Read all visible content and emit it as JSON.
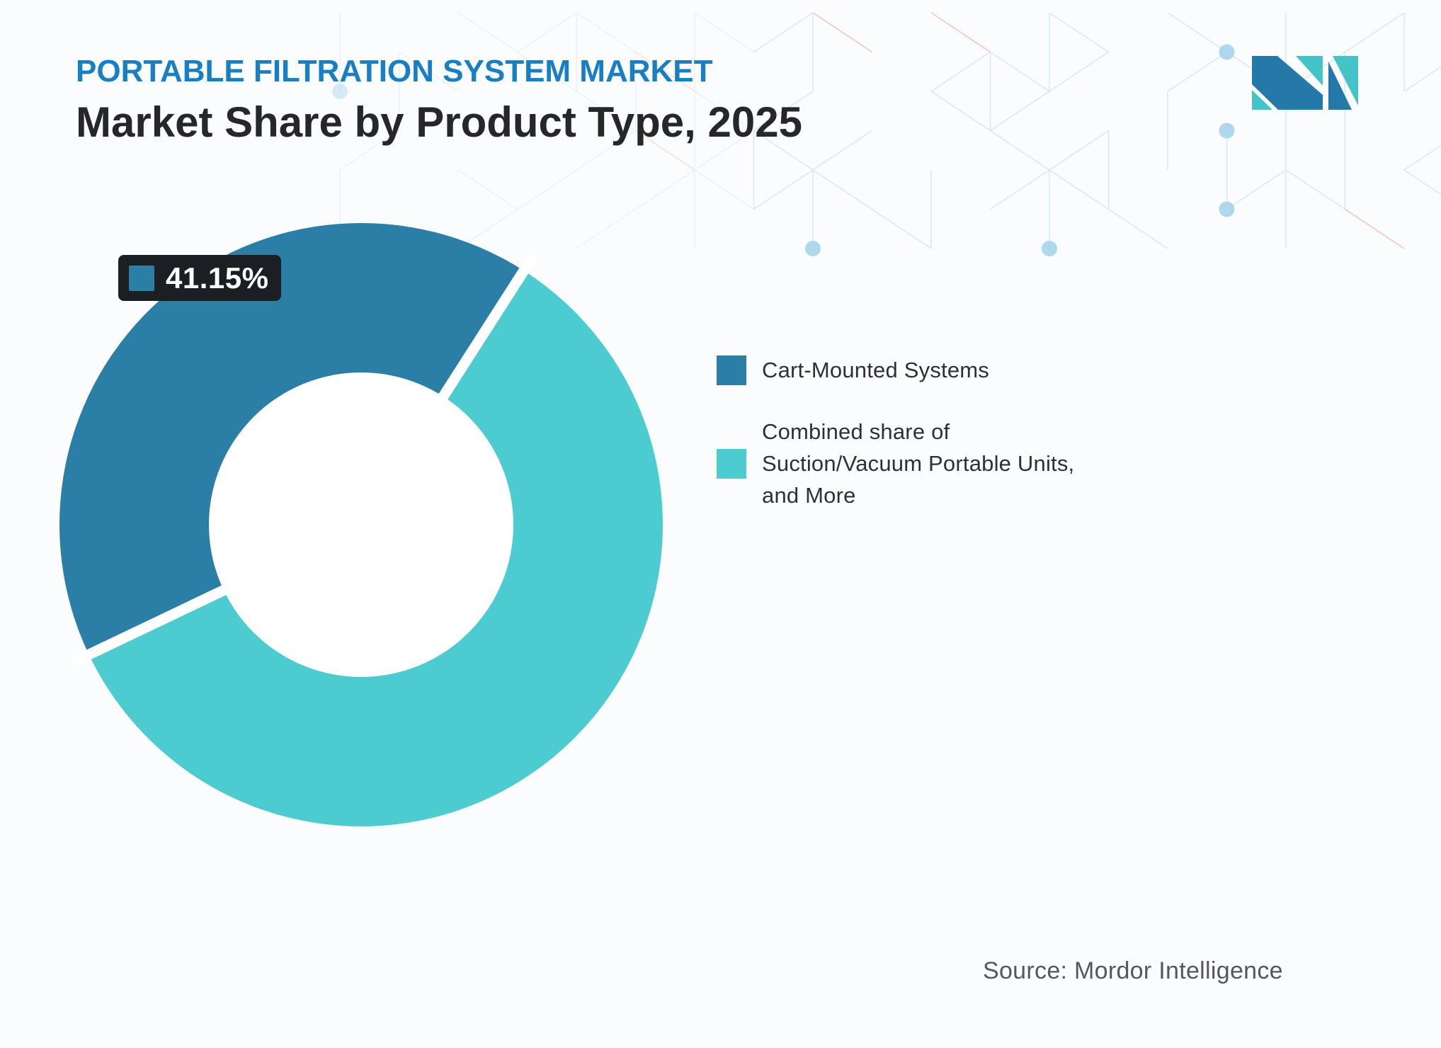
{
  "header": {
    "kicker": "PORTABLE FILTRATION SYSTEM MARKET",
    "title": "Market Share by Product Type, 2025"
  },
  "badge": {
    "value_label": "41.15%"
  },
  "legend": {
    "items": [
      {
        "label": "Cart-Mounted Systems",
        "lines": [
          "Cart-Mounted Systems"
        ],
        "color": "#2B7FA6"
      },
      {
        "label": "Combined share of Suction/Vacuum Portable Units, and More",
        "lines": [
          "Combined share of",
          "Suction/Vacuum Portable Units,",
          "and More"
        ],
        "color": "#4CCBD1"
      }
    ]
  },
  "footer": {
    "source": "Source: Mordor Intelligence"
  },
  "logo": {
    "name": "mordor-intelligence-logo",
    "blue": "#2579A8",
    "teal": "#43C4C9"
  },
  "theme": {
    "kicker_blue": "#187FC4",
    "title_dark": "#26262B",
    "badge_bg": "#1B1F24",
    "pattern_line": "#D3E7F2",
    "pattern_coral": "#F4C0AE",
    "pattern_dot": "#A6D4EA"
  },
  "chart_data": {
    "type": "pie",
    "donut": true,
    "title": "Market Share by Product Type, 2025",
    "categories": [
      "Cart-Mounted Systems",
      "Combined share of Suction/Vacuum Portable Units, and More"
    ],
    "values": [
      41.15,
      58.85
    ],
    "unit": "%",
    "colors": [
      "#2B7FA6",
      "#4CCBD1"
    ],
    "data_label": {
      "series": "Cart-Mounted Systems",
      "text": "41.15%"
    },
    "legend_position": "right",
    "hole_ratio": 0.5
  }
}
